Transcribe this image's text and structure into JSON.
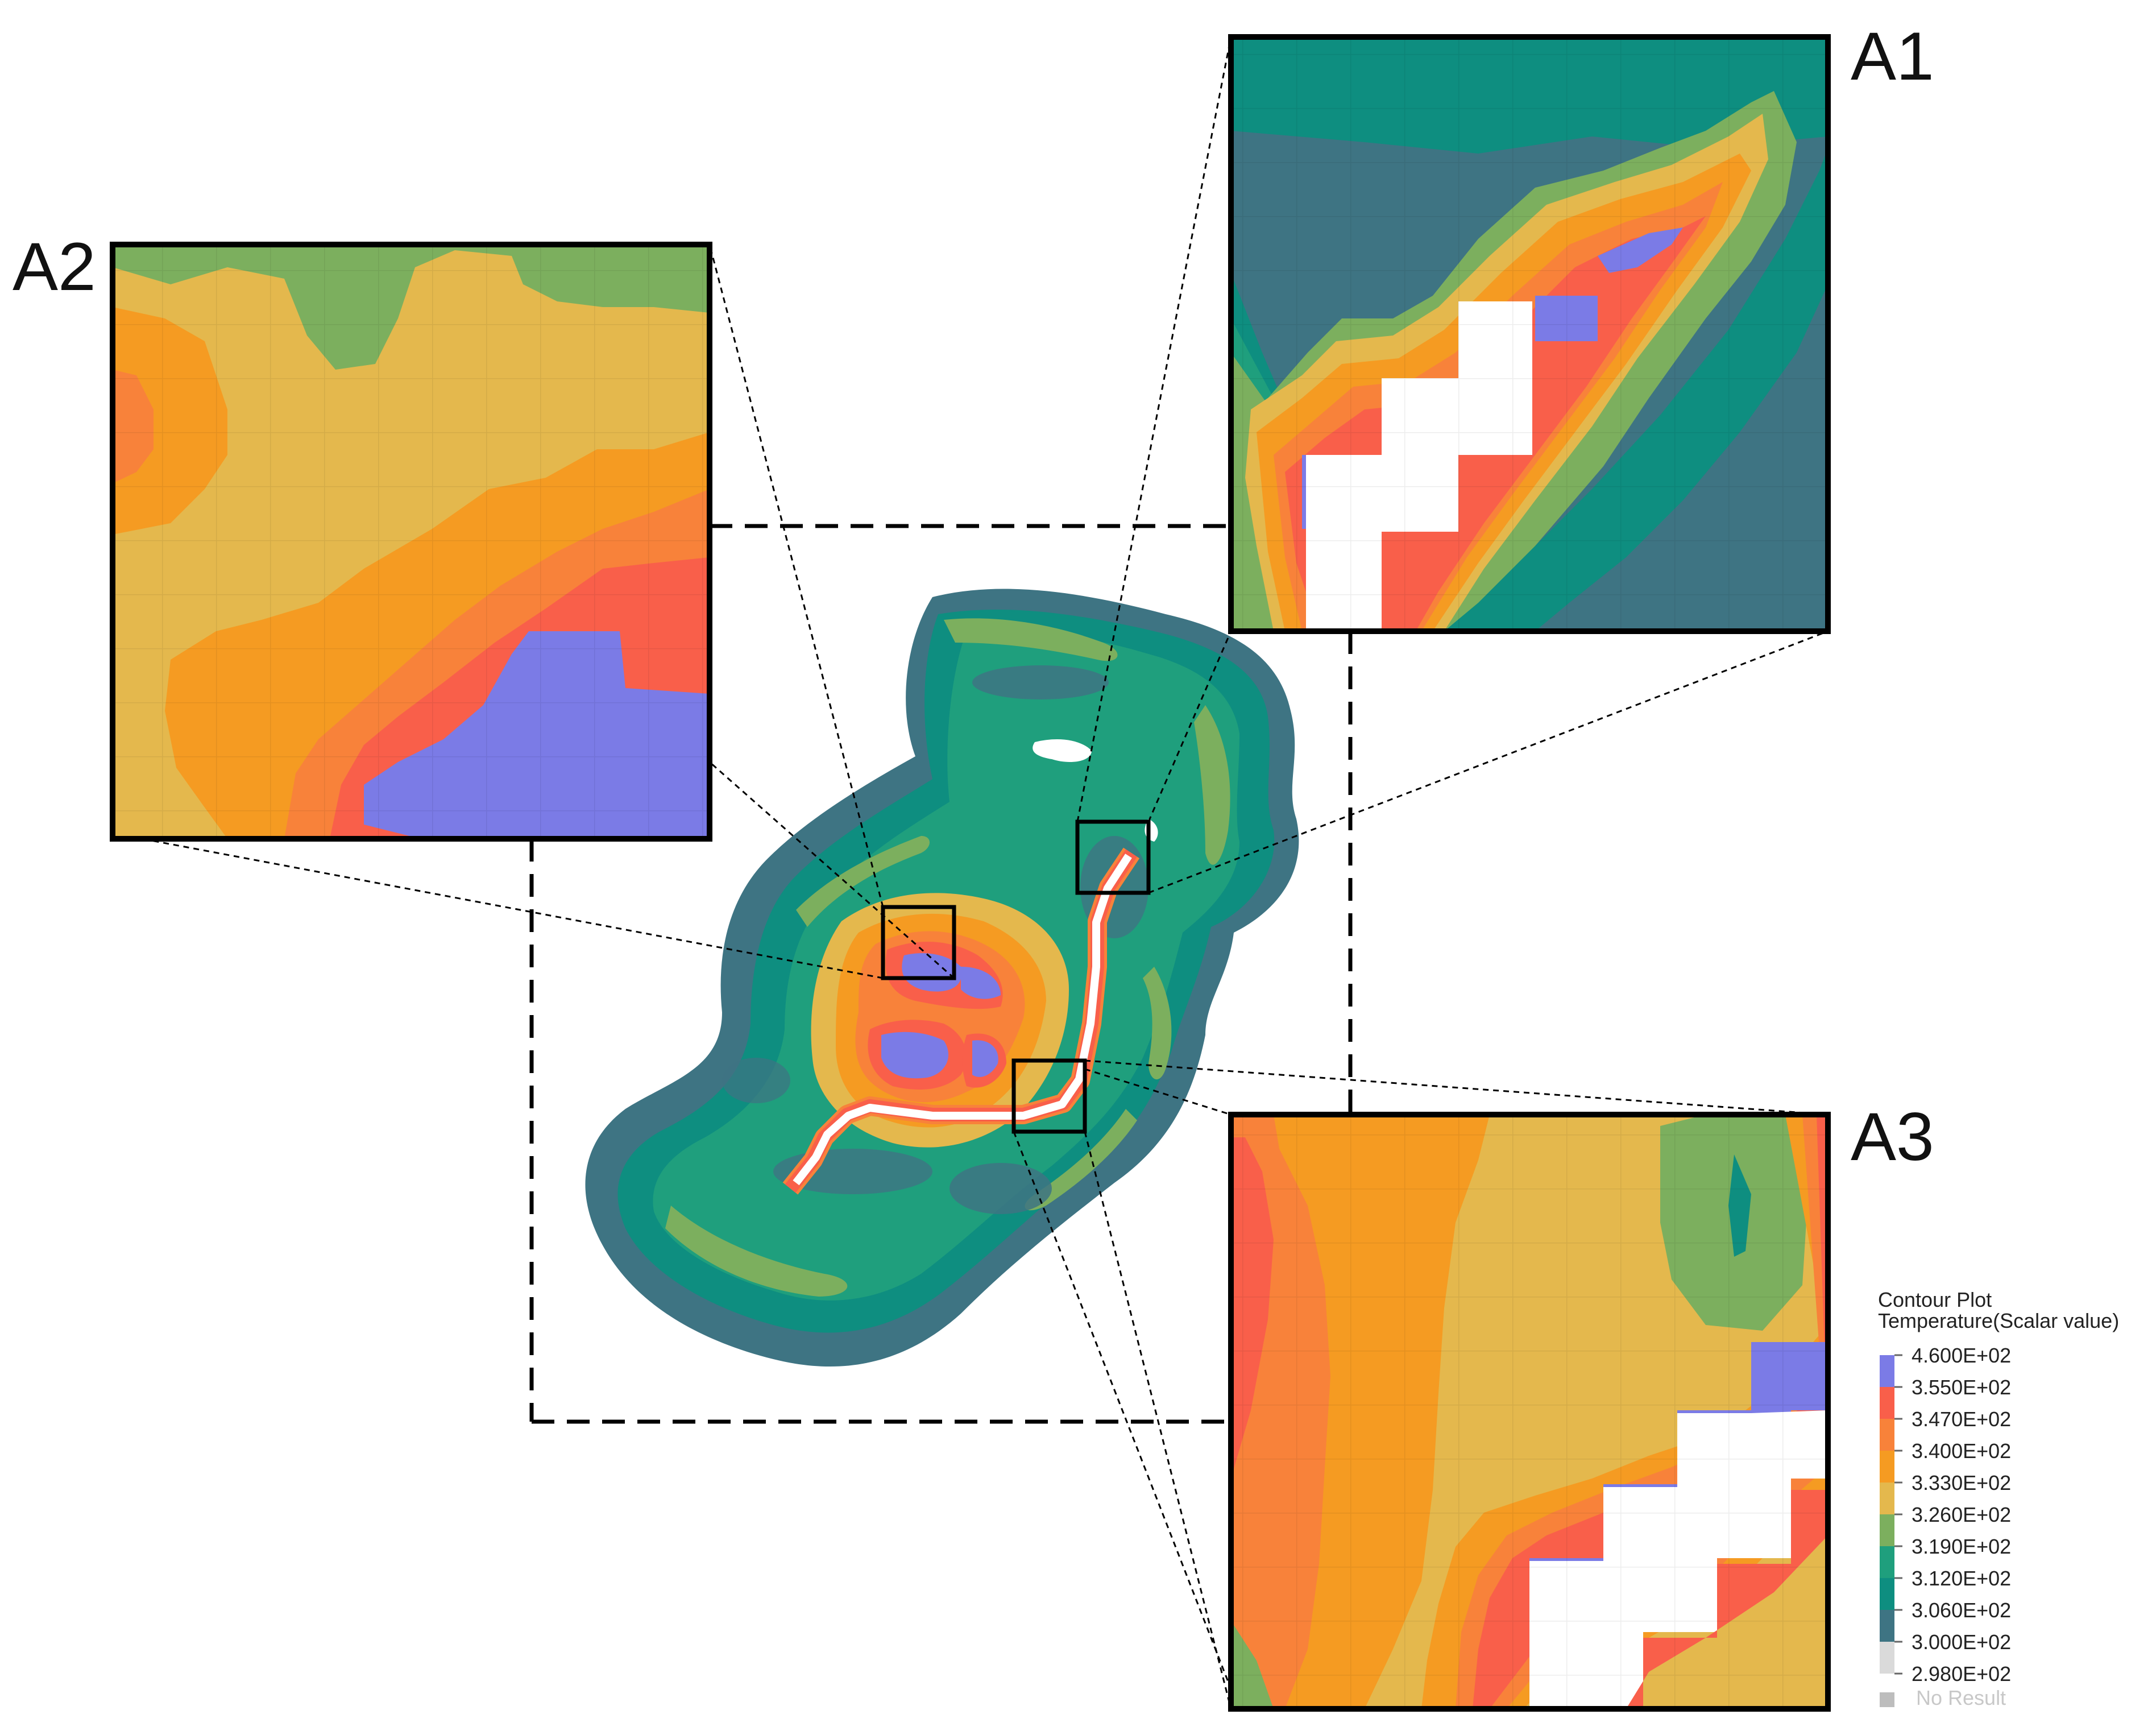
{
  "panels": {
    "a1": {
      "label": "A1"
    },
    "a2": {
      "label": "A2"
    },
    "a3": {
      "label": "A3"
    }
  },
  "legend": {
    "title_line1": "Contour Plot",
    "title_line2": "Temperature(Scalar value)",
    "entries": [
      {
        "value": "4.600E+02",
        "color": "#7B7BE6"
      },
      {
        "value": "3.550E+02",
        "color": "#F95F4A"
      },
      {
        "value": "3.470E+02",
        "color": "#F8823A"
      },
      {
        "value": "3.400E+02",
        "color": "#F59B22"
      },
      {
        "value": "3.330E+02",
        "color": "#E4B84D"
      },
      {
        "value": "3.260E+02",
        "color": "#7CAF5E"
      },
      {
        "value": "3.190E+02",
        "color": "#1F9F7D"
      },
      {
        "value": "3.120E+02",
        "color": "#0E8E80"
      },
      {
        "value": "3.060E+02",
        "color": "#3E7483"
      },
      {
        "value": "3.000E+02",
        "color": "#DADADA"
      },
      {
        "value": "2.980E+02",
        "color": "#E6E6E6"
      }
    ],
    "no_result_label": "No Result",
    "no_result_color": "#BDBDBD"
  }
}
